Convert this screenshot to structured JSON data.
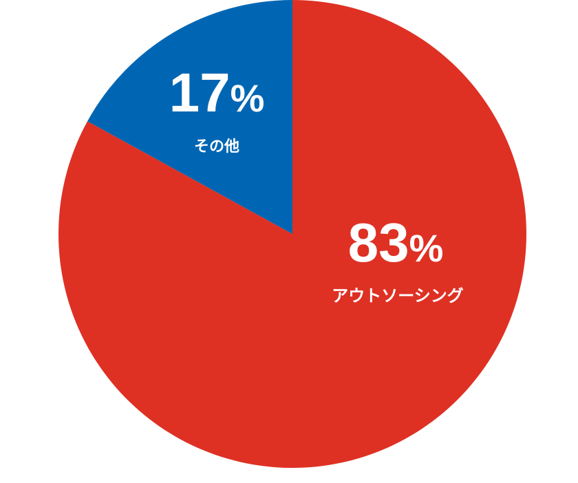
{
  "chart_data": {
    "type": "pie",
    "title": "",
    "start": "top",
    "direction": "clockwise",
    "slices": [
      {
        "label": "アウトソーシング",
        "value": 83,
        "display": "83",
        "unit": "%",
        "color": "#DE3124"
      },
      {
        "label": "その他",
        "value": 17,
        "display": "17",
        "unit": "%",
        "color": "#0066B3"
      }
    ]
  }
}
